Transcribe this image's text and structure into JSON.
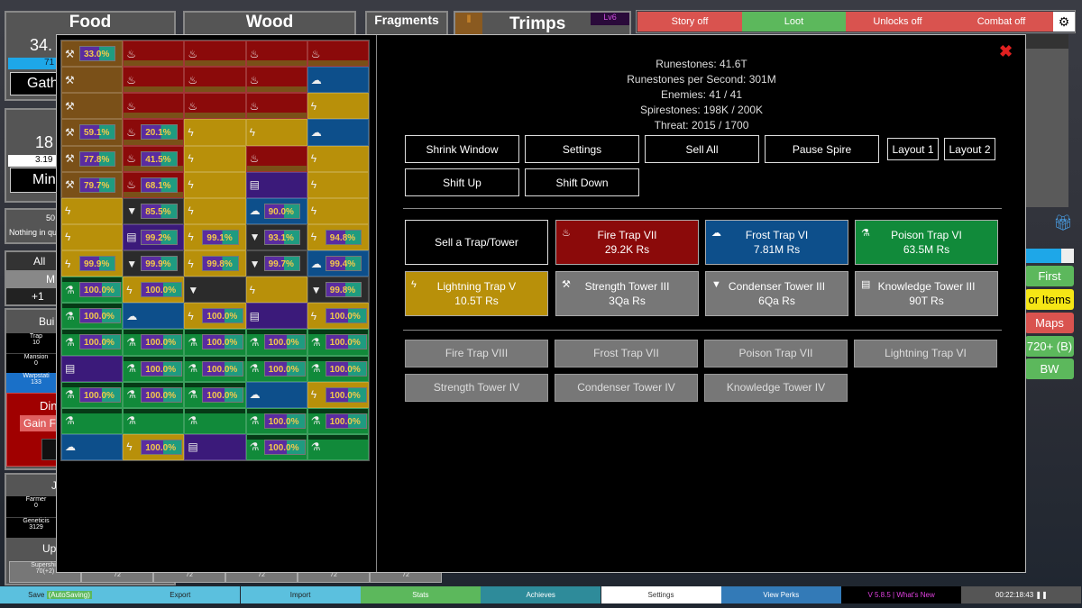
{
  "resources": {
    "food": {
      "title": "Food",
      "amount": "34.",
      "rate": "71",
      "button": "Gath"
    },
    "wood": {
      "title": "Wood"
    },
    "fragments": {
      "title": "Fragments"
    },
    "trimps": {
      "title": "Trimps",
      "level": "Lv6"
    },
    "metal": {
      "amount": "18",
      "rate": "3.19",
      "button": "Min"
    }
  },
  "queue": {
    "count": "50",
    "text": "Nothing in qu"
  },
  "buy_tabs": {
    "all": "All",
    "m": "M",
    "plus": "+1"
  },
  "buildings": {
    "title": "Bui",
    "items": [
      {
        "name": "Trap",
        "count": "10"
      },
      {
        "name": "Mansion",
        "count": "0"
      },
      {
        "name": "Warpstati",
        "count": "133"
      }
    ]
  },
  "dimension": {
    "title": "Din",
    "button": "Gain F"
  },
  "jobs": {
    "title": "J",
    "items": [
      {
        "name": "Farmer",
        "count": "0"
      },
      {
        "name": "Geneticis",
        "count": "3129"
      }
    ]
  },
  "upgrades": {
    "title": "Upg",
    "items": [
      {
        "name": "Supershie",
        "count": "70(+2)"
      },
      {
        "count": "72"
      },
      {
        "count": "72"
      },
      {
        "count": "72"
      },
      {
        "count": "72"
      },
      {
        "count": "72"
      }
    ]
  },
  "toggles": [
    {
      "label": "Story off",
      "color": "#d9534f"
    },
    {
      "label": "Loot",
      "color": "#5cb85c"
    },
    {
      "label": "Unlocks off",
      "color": "#d9534f"
    },
    {
      "label": "Combat off",
      "color": "#d9534f"
    }
  ],
  "right_buttons": [
    {
      "label": "First",
      "color": "#5cb85c"
    },
    {
      "label": "or Items",
      "color": "#f5e615"
    },
    {
      "label": "Maps",
      "color": "#d9534f"
    },
    {
      "label": "720+ (B)",
      "color": "#5cb85c"
    },
    {
      "label": "BW",
      "color": "#5cb85c"
    }
  ],
  "spire": {
    "stats": [
      "Runestones: 41.6T",
      "Runestones per Second: 301M",
      "Enemies: 41 / 41",
      "Spirestones: 198K / 200K",
      "Threat: 2015 / 1700"
    ],
    "controls": {
      "shrink": "Shrink Window",
      "settings": "Settings",
      "sell_all": "Sell All",
      "pause": "Pause Spire",
      "layout1": "Layout 1",
      "layout2": "Layout 2",
      "shift_up": "Shift Up",
      "shift_down": "Shift Down"
    },
    "sell": "Sell a Trap/Tower",
    "traps": [
      {
        "name": "Fire Trap VII",
        "cost": "29.2K Rs",
        "color": "#8b0a0a",
        "icon": "fire-icon"
      },
      {
        "name": "Frost Trap VI",
        "cost": "7.81M Rs",
        "color": "#0d4f8b",
        "icon": "frost-icon"
      },
      {
        "name": "Poison Trap VI",
        "cost": "63.5M Rs",
        "color": "#118a3a",
        "icon": "poison-icon"
      },
      {
        "name": "Lightning Trap V",
        "cost": "10.5T Rs",
        "color": "#b8900a",
        "icon": "lightning-icon"
      },
      {
        "name": "Strength Tower III",
        "cost": "3Qa Rs",
        "color": "#777777",
        "icon": "strength-icon"
      },
      {
        "name": "Condenser Tower III",
        "cost": "6Qa Rs",
        "color": "#777777",
        "icon": "condenser-icon"
      },
      {
        "name": "Knowledge Tower III",
        "cost": "90T Rs",
        "color": "#777777",
        "icon": "knowledge-icon"
      }
    ],
    "locked": [
      "Fire Trap VIII",
      "Frost Trap VII",
      "Poison Trap VII",
      "Lightning Trap VI",
      "Strength Tower IV",
      "Condenser Tower IV",
      "Knowledge Tower IV"
    ],
    "cell_colors": {
      "S": "#7a5018",
      "F": "#8b0a0a",
      "Fr": "#0d4f8b",
      "L": "#b8900a",
      "C": "#2b2b2b",
      "K": "#3b1a7a",
      "P": "#118a3a"
    },
    "grid": [
      [
        [
          "S",
          "33.0%"
        ],
        [
          "F"
        ],
        [
          "F"
        ],
        [
          "F"
        ],
        [
          "F"
        ]
      ],
      [
        [
          "S"
        ],
        [
          "F"
        ],
        [
          "F"
        ],
        [
          "F"
        ],
        [
          "Fr"
        ]
      ],
      [
        [
          "S"
        ],
        [
          "F"
        ],
        [
          "F"
        ],
        [
          "F"
        ],
        [
          "L"
        ]
      ],
      [
        [
          "S",
          "59.1%"
        ],
        [
          "F",
          "20.1%"
        ],
        [
          "L"
        ],
        [
          "L"
        ],
        [
          "Fr"
        ]
      ],
      [
        [
          "S",
          "77.8%"
        ],
        [
          "F",
          "41.5%"
        ],
        [
          "L"
        ],
        [
          "F"
        ],
        [
          "L"
        ]
      ],
      [
        [
          "S",
          "79.7%"
        ],
        [
          "F",
          "68.1%"
        ],
        [
          "L"
        ],
        [
          "K"
        ],
        [
          "L"
        ]
      ],
      [
        [
          "L"
        ],
        [
          "C",
          "85.5%"
        ],
        [
          "L"
        ],
        [
          "Fr",
          "90.0%"
        ],
        [
          "L"
        ]
      ],
      [
        [
          "L"
        ],
        [
          "K",
          "99.2%"
        ],
        [
          "L",
          "99.1%"
        ],
        [
          "C",
          "93.1%"
        ],
        [
          "L",
          "94.8%"
        ]
      ],
      [
        [
          "L",
          "99.9%"
        ],
        [
          "C",
          "99.9%"
        ],
        [
          "L",
          "99.8%"
        ],
        [
          "C",
          "99.7%"
        ],
        [
          "Fr",
          "99.4%"
        ]
      ],
      [
        [
          "P",
          "100.0%"
        ],
        [
          "L",
          "100.0%"
        ],
        [
          "C"
        ],
        [
          "L"
        ],
        [
          "C",
          "99.8%"
        ]
      ],
      [
        [
          "P",
          "100.0%"
        ],
        [
          "Fr"
        ],
        [
          "L",
          "100.0%"
        ],
        [
          "K"
        ],
        [
          "L",
          "100.0%"
        ]
      ],
      [
        [
          "P",
          "100.0%"
        ],
        [
          "P",
          "100.0%"
        ],
        [
          "P",
          "100.0%"
        ],
        [
          "P",
          "100.0%"
        ],
        [
          "P",
          "100.0%"
        ]
      ],
      [
        [
          "K"
        ],
        [
          "P",
          "100.0%"
        ],
        [
          "P",
          "100.0%"
        ],
        [
          "P",
          "100.0%"
        ],
        [
          "P",
          "100.0%"
        ]
      ],
      [
        [
          "P",
          "100.0%"
        ],
        [
          "P",
          "100.0%"
        ],
        [
          "P",
          "100.0%"
        ],
        [
          "Fr"
        ],
        [
          "L",
          "100.0%"
        ]
      ],
      [
        [
          "P"
        ],
        [
          "P"
        ],
        [
          "P"
        ],
        [
          "P",
          "100.0%"
        ],
        [
          "P",
          "100.0%"
        ]
      ],
      [
        [
          "Fr"
        ],
        [
          "L",
          "100.0%"
        ],
        [
          "K"
        ],
        [
          "P",
          "100.0%"
        ],
        [
          "P"
        ]
      ]
    ]
  },
  "bottom_bar": [
    {
      "label": "Save",
      "badge": "(AutoSaving)",
      "color": "#5bc0de",
      "text": "#222"
    },
    {
      "label": "Export",
      "color": "#5bc0de",
      "text": "#222"
    },
    {
      "label": "Import",
      "color": "#5bc0de",
      "text": "#222"
    },
    {
      "label": "Stats",
      "color": "#5cb85c",
      "text": "#fff"
    },
    {
      "label": "Achieves",
      "color": "#2e8b9a",
      "text": "#fff"
    },
    {
      "label": "Settings",
      "color": "#ffffff",
      "text": "#333"
    },
    {
      "label": "View Perks",
      "color": "#337ab7",
      "text": "#fff"
    },
    {
      "label": "V 5.8.5 | What's New",
      "color": "#000000",
      "text": "#e040e0"
    },
    {
      "label": "00:22:18:43 ❚❚",
      "color": "#555555",
      "text": "#fff"
    }
  ]
}
